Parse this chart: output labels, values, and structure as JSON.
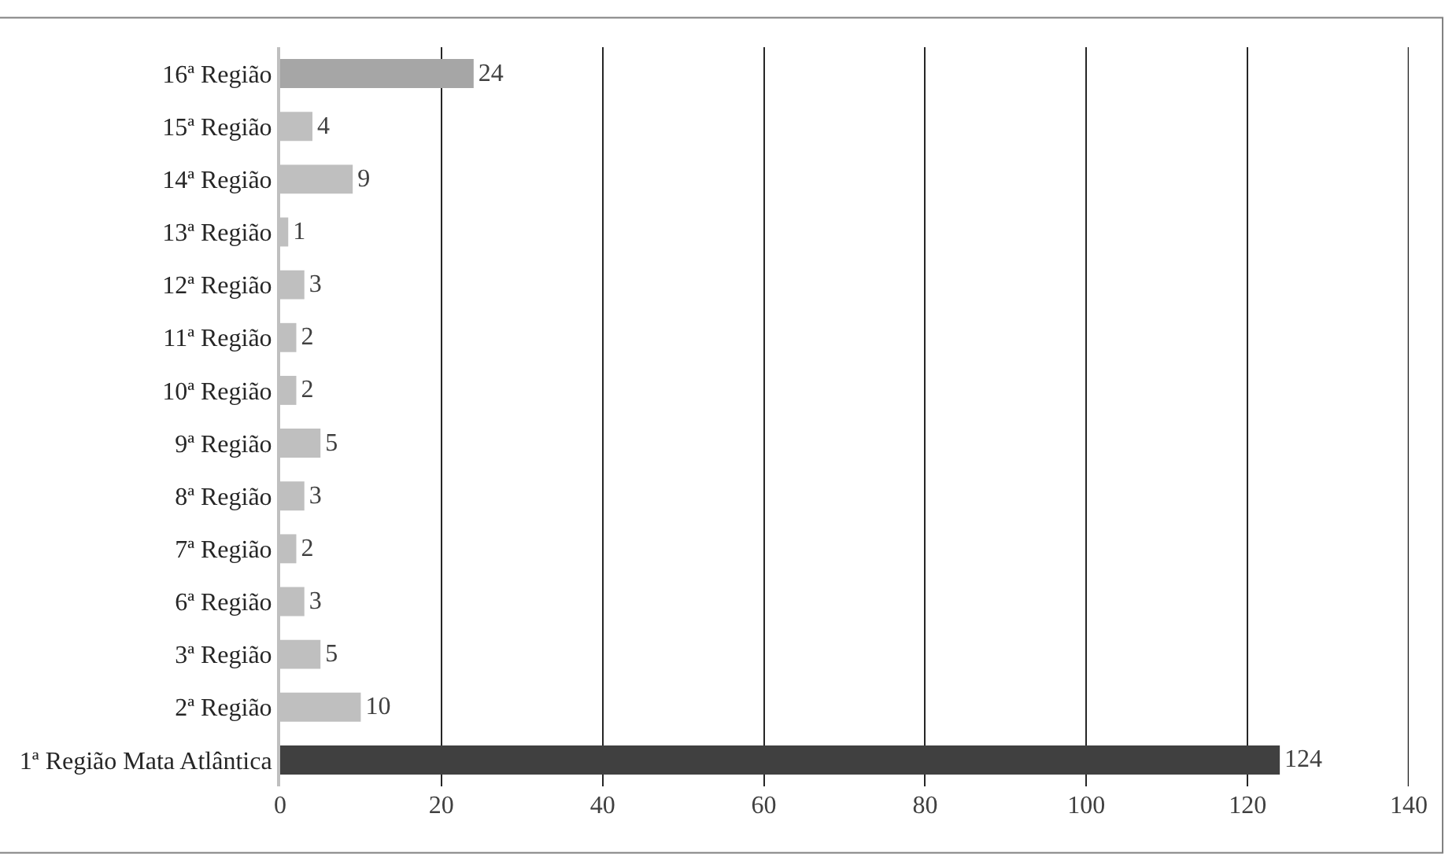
{
  "chart_data": {
    "type": "bar",
    "orientation": "horizontal",
    "categories": [
      "16ª Região",
      "15ª Região",
      "14ª Região",
      "13ª Região",
      "12ª Região",
      "11ª Região",
      "10ª Região",
      "9ª Região",
      "8ª Região",
      "7ª Região",
      " 6ª Região",
      "3ª Região",
      "2ª Região",
      "1ª Região Mata Atlântica"
    ],
    "values": [
      24,
      4,
      9,
      1,
      3,
      2,
      2,
      5,
      3,
      2,
      3,
      5,
      10,
      124
    ],
    "colors": [
      "#a6a6a6",
      "#bfbfbf",
      "#bfbfbf",
      "#bfbfbf",
      "#bfbfbf",
      "#bfbfbf",
      "#bfbfbf",
      "#bfbfbf",
      "#bfbfbf",
      "#bfbfbf",
      "#bfbfbf",
      "#bfbfbf",
      "#bfbfbf",
      "#404040"
    ],
    "xlim": [
      0,
      140
    ],
    "xticks": [
      0,
      20,
      40,
      60,
      80,
      100,
      120,
      140
    ],
    "grid": "x",
    "data_labels": true
  }
}
